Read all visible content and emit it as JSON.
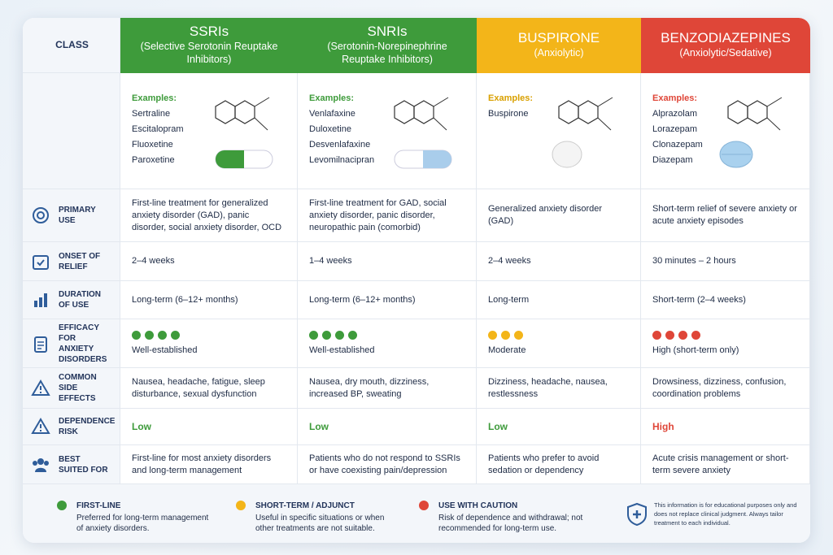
{
  "header": {
    "class_label": "CLASS",
    "columns": [
      {
        "name": "SSRIs",
        "subtitle": "(Selective Serotonin Reuptake Inhibitors)",
        "color": "#3e9b3b"
      },
      {
        "name": "SNRIs",
        "subtitle": "(Serotonin-Norepinephrine Reuptake Inhibitors)",
        "color": "#3e9b3b"
      },
      {
        "name": "BUSPIRONE",
        "subtitle": "(Anxiolytic)",
        "color": "#f3b519"
      },
      {
        "name": "BENZODIAZEPINES",
        "subtitle": "(Anxiolytic/Sedative)",
        "color": "#df4638"
      }
    ]
  },
  "examples": {
    "label": "Examples:",
    "drugs": [
      [
        "Sertraline",
        "Escitalopram",
        "Fluoxetine",
        "Paroxetine"
      ],
      [
        "Venlafaxine",
        "Duloxetine",
        "Desvenlafaxine",
        "Levomilnacipran"
      ],
      [
        "Buspirone"
      ],
      [
        "Alprazolam",
        "Lorazepam",
        "Clonazepam",
        "Diazepam"
      ]
    ]
  },
  "rows": [
    {
      "label": "PRIMARY USE",
      "cells": [
        "First-line treatment for generalized anxiety disorder (GAD), panic disorder, social anxiety disorder, OCD",
        "First-line treatment for GAD, social anxiety disorder, panic disorder, neuropathic pain (comorbid)",
        "Generalized anxiety disorder (GAD)",
        "Short-term relief of severe anxiety or acute anxiety episodes"
      ]
    },
    {
      "label": "ONSET OF RELIEF",
      "cells": [
        "2–4 weeks",
        "1–4 weeks",
        "2–4 weeks",
        "30 minutes – 2 hours"
      ]
    },
    {
      "label": "DURATION OF USE",
      "cells": [
        "Long-term (6–12+ months)",
        "Long-term (6–12+ months)",
        "Long-term",
        "Short-term (2–4 weeks)"
      ]
    },
    {
      "label": "EFFICACY FOR ANXIETY DISORDERS",
      "cells": [
        "Well-established",
        "Well-established",
        "Moderate",
        "High (short-term only)"
      ],
      "rating": [
        4,
        4,
        3,
        4
      ]
    },
    {
      "label": "COMMON SIDE EFFECTS",
      "cells": [
        "Nausea, headache, fatigue, sleep disturbance, sexual dysfunction",
        "Nausea, dry mouth, dizziness, increased BP, sweating",
        "Dizziness, headache, nausea, restlessness",
        "Drowsiness, dizziness, confusion, coordination problems"
      ]
    },
    {
      "label": "DEPENDENCE RISK",
      "cells": [
        "Low",
        "Low",
        "Low",
        "High"
      ],
      "colors": [
        "#3e9b3b",
        "#3e9b3b",
        "#3e9b3b",
        "#df4638"
      ]
    },
    {
      "label": "BEST SUITED FOR",
      "cells": [
        "First-line for most anxiety disorders and long-term management",
        "Patients who do not respond to SSRIs or have coexisting pain/depression",
        "Patients who prefer to avoid sedation or dependency",
        "Acute crisis management or short-term severe anxiety"
      ]
    }
  ],
  "legend": [
    {
      "title": "FIRST-LINE",
      "text": "Preferred for long-term management of anxiety disorders.",
      "color": "#3e9b3b"
    },
    {
      "title": "SHORT-TERM / ADJUNCT",
      "text": "Useful in specific situations or when other treatments are not suitable.",
      "color": "#f3b519"
    },
    {
      "title": "USE WITH CAUTION",
      "text": "Risk of dependence and withdrawal; not recommended for long-term use.",
      "color": "#df4638"
    }
  ],
  "disclaimer": "This information is for educational purposes only and does not replace clinical judgment. Always tailor treatment to each individual."
}
